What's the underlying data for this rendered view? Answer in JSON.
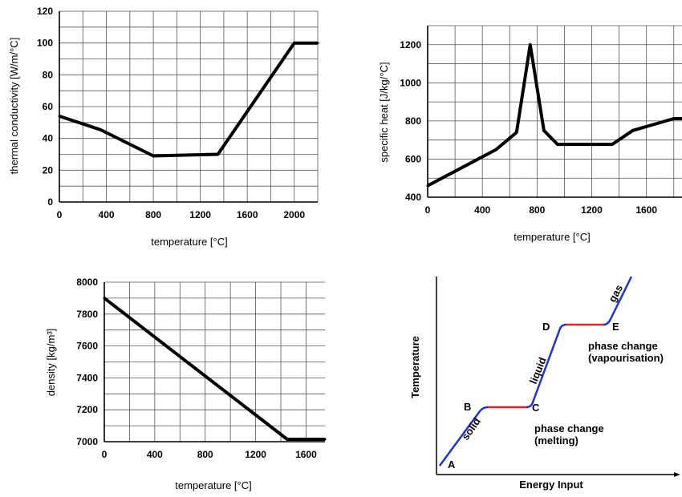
{
  "chart_data": [
    {
      "type": "line",
      "xlabel": "temperature [°C]",
      "ylabel": "thermal conductivity [W/m/°C]",
      "xlim": [
        0,
        2200
      ],
      "ylim": [
        0,
        120
      ],
      "xticks": [
        0,
        400,
        800,
        1200,
        1600,
        2000
      ],
      "yticks": [
        0,
        20,
        40,
        60,
        80,
        100,
        120
      ],
      "grid": true,
      "series": [
        {
          "x": [
            0,
            350,
            800,
            1350,
            2000,
            2200
          ],
          "y": [
            54,
            45.5,
            29,
            30,
            100,
            100
          ]
        }
      ]
    },
    {
      "type": "line",
      "xlabel": "temperature [°C]",
      "ylabel": "specific heat [J/kg/°C]",
      "xlim": [
        0,
        1860
      ],
      "ylim": [
        400,
        1300
      ],
      "xticks": [
        0,
        400,
        800,
        1200,
        1600
      ],
      "yticks": [
        400,
        600,
        800,
        1000,
        1200
      ],
      "grid": true,
      "series": [
        {
          "x": [
            0,
            500,
            650,
            750,
            850,
            950,
            1100,
            1350,
            1500,
            1800,
            1860
          ],
          "y": [
            460,
            650,
            740,
            1200,
            750,
            677,
            677,
            677,
            750,
            812,
            812
          ]
        }
      ]
    },
    {
      "type": "line",
      "xlabel": "temperature [°C]",
      "ylabel": "density [kg/m³]",
      "xlim": [
        0,
        1750
      ],
      "ylim": [
        7000,
        8000
      ],
      "xticks": [
        0,
        400,
        800,
        1200,
        1600
      ],
      "yticks": [
        7000,
        7200,
        7400,
        7600,
        7800,
        8000
      ],
      "grid": true,
      "series": [
        {
          "x": [
            0,
            1450,
            1750
          ],
          "y": [
            7900,
            7015,
            7015
          ]
        }
      ]
    },
    {
      "type": "line",
      "xlabel": "Energy Input",
      "ylabel": "Temperature",
      "points": [
        "A",
        "B",
        "C",
        "D",
        "E"
      ],
      "segments": [
        {
          "from": "A",
          "to": "B",
          "label": "solid",
          "color": "#2233cc"
        },
        {
          "from": "B",
          "to": "C",
          "label": "",
          "color": "#dd2222"
        },
        {
          "from": "C",
          "to": "D",
          "label": "liquid",
          "color": "#2233cc"
        },
        {
          "from": "D",
          "to": "E",
          "label": "",
          "color": "#dd2222"
        },
        {
          "from": "E",
          "to": "end",
          "label": "gas",
          "color": "#2233cc"
        }
      ],
      "annotations": [
        {
          "near": "C",
          "lines": [
            "phase change",
            "(melting)"
          ]
        },
        {
          "near": "E",
          "lines": [
            "phase change",
            "(vapourisation)"
          ]
        }
      ]
    }
  ]
}
